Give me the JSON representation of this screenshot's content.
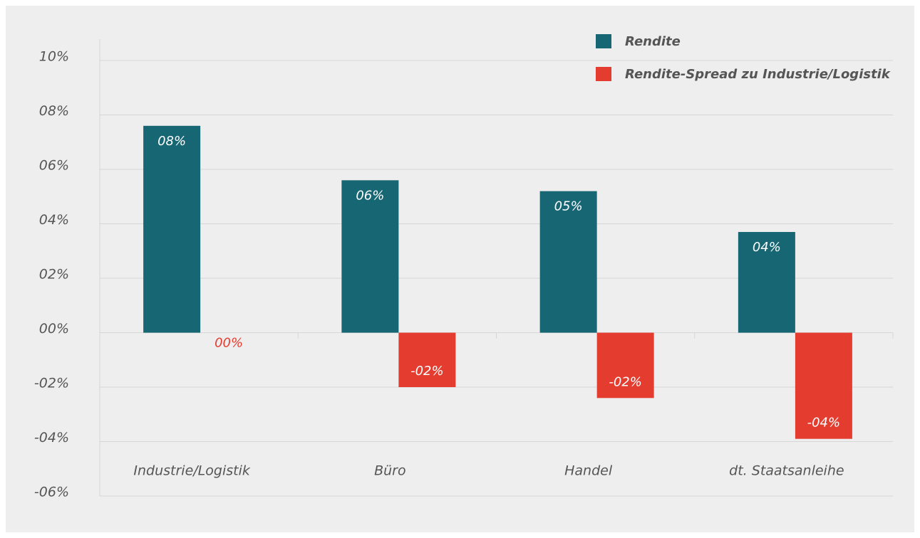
{
  "chart_data": {
    "type": "bar",
    "categories": [
      "Industrie/Logistik",
      "Büro",
      "Handel",
      "dt. Staatsanleihe"
    ],
    "series": [
      {
        "name": "Rendite",
        "color": "#176674",
        "values": [
          7.6,
          5.6,
          5.2,
          3.7
        ],
        "value_labels": [
          "08%",
          "06%",
          "05%",
          "04%"
        ]
      },
      {
        "name": "Rendite-Spread zu Industrie/Logistik",
        "color": "#e43d30",
        "values": [
          0,
          -2.0,
          -2.4,
          -3.9
        ],
        "value_labels": [
          "00%",
          "-02%",
          "-02%",
          "-04%"
        ]
      }
    ],
    "ylim": [
      -6,
      10
    ],
    "yticks": [
      {
        "value": -6,
        "label": "-06%"
      },
      {
        "value": -4,
        "label": "-04%"
      },
      {
        "value": -2,
        "label": "-02%"
      },
      {
        "value": 0,
        "label": "00%"
      },
      {
        "value": 2,
        "label": "02%"
      },
      {
        "value": 4,
        "label": "04%"
      },
      {
        "value": 6,
        "label": "06%"
      },
      {
        "value": 8,
        "label": "08%"
      },
      {
        "value": 10,
        "label": "10%"
      }
    ],
    "grid": true,
    "legend": "top-right"
  }
}
